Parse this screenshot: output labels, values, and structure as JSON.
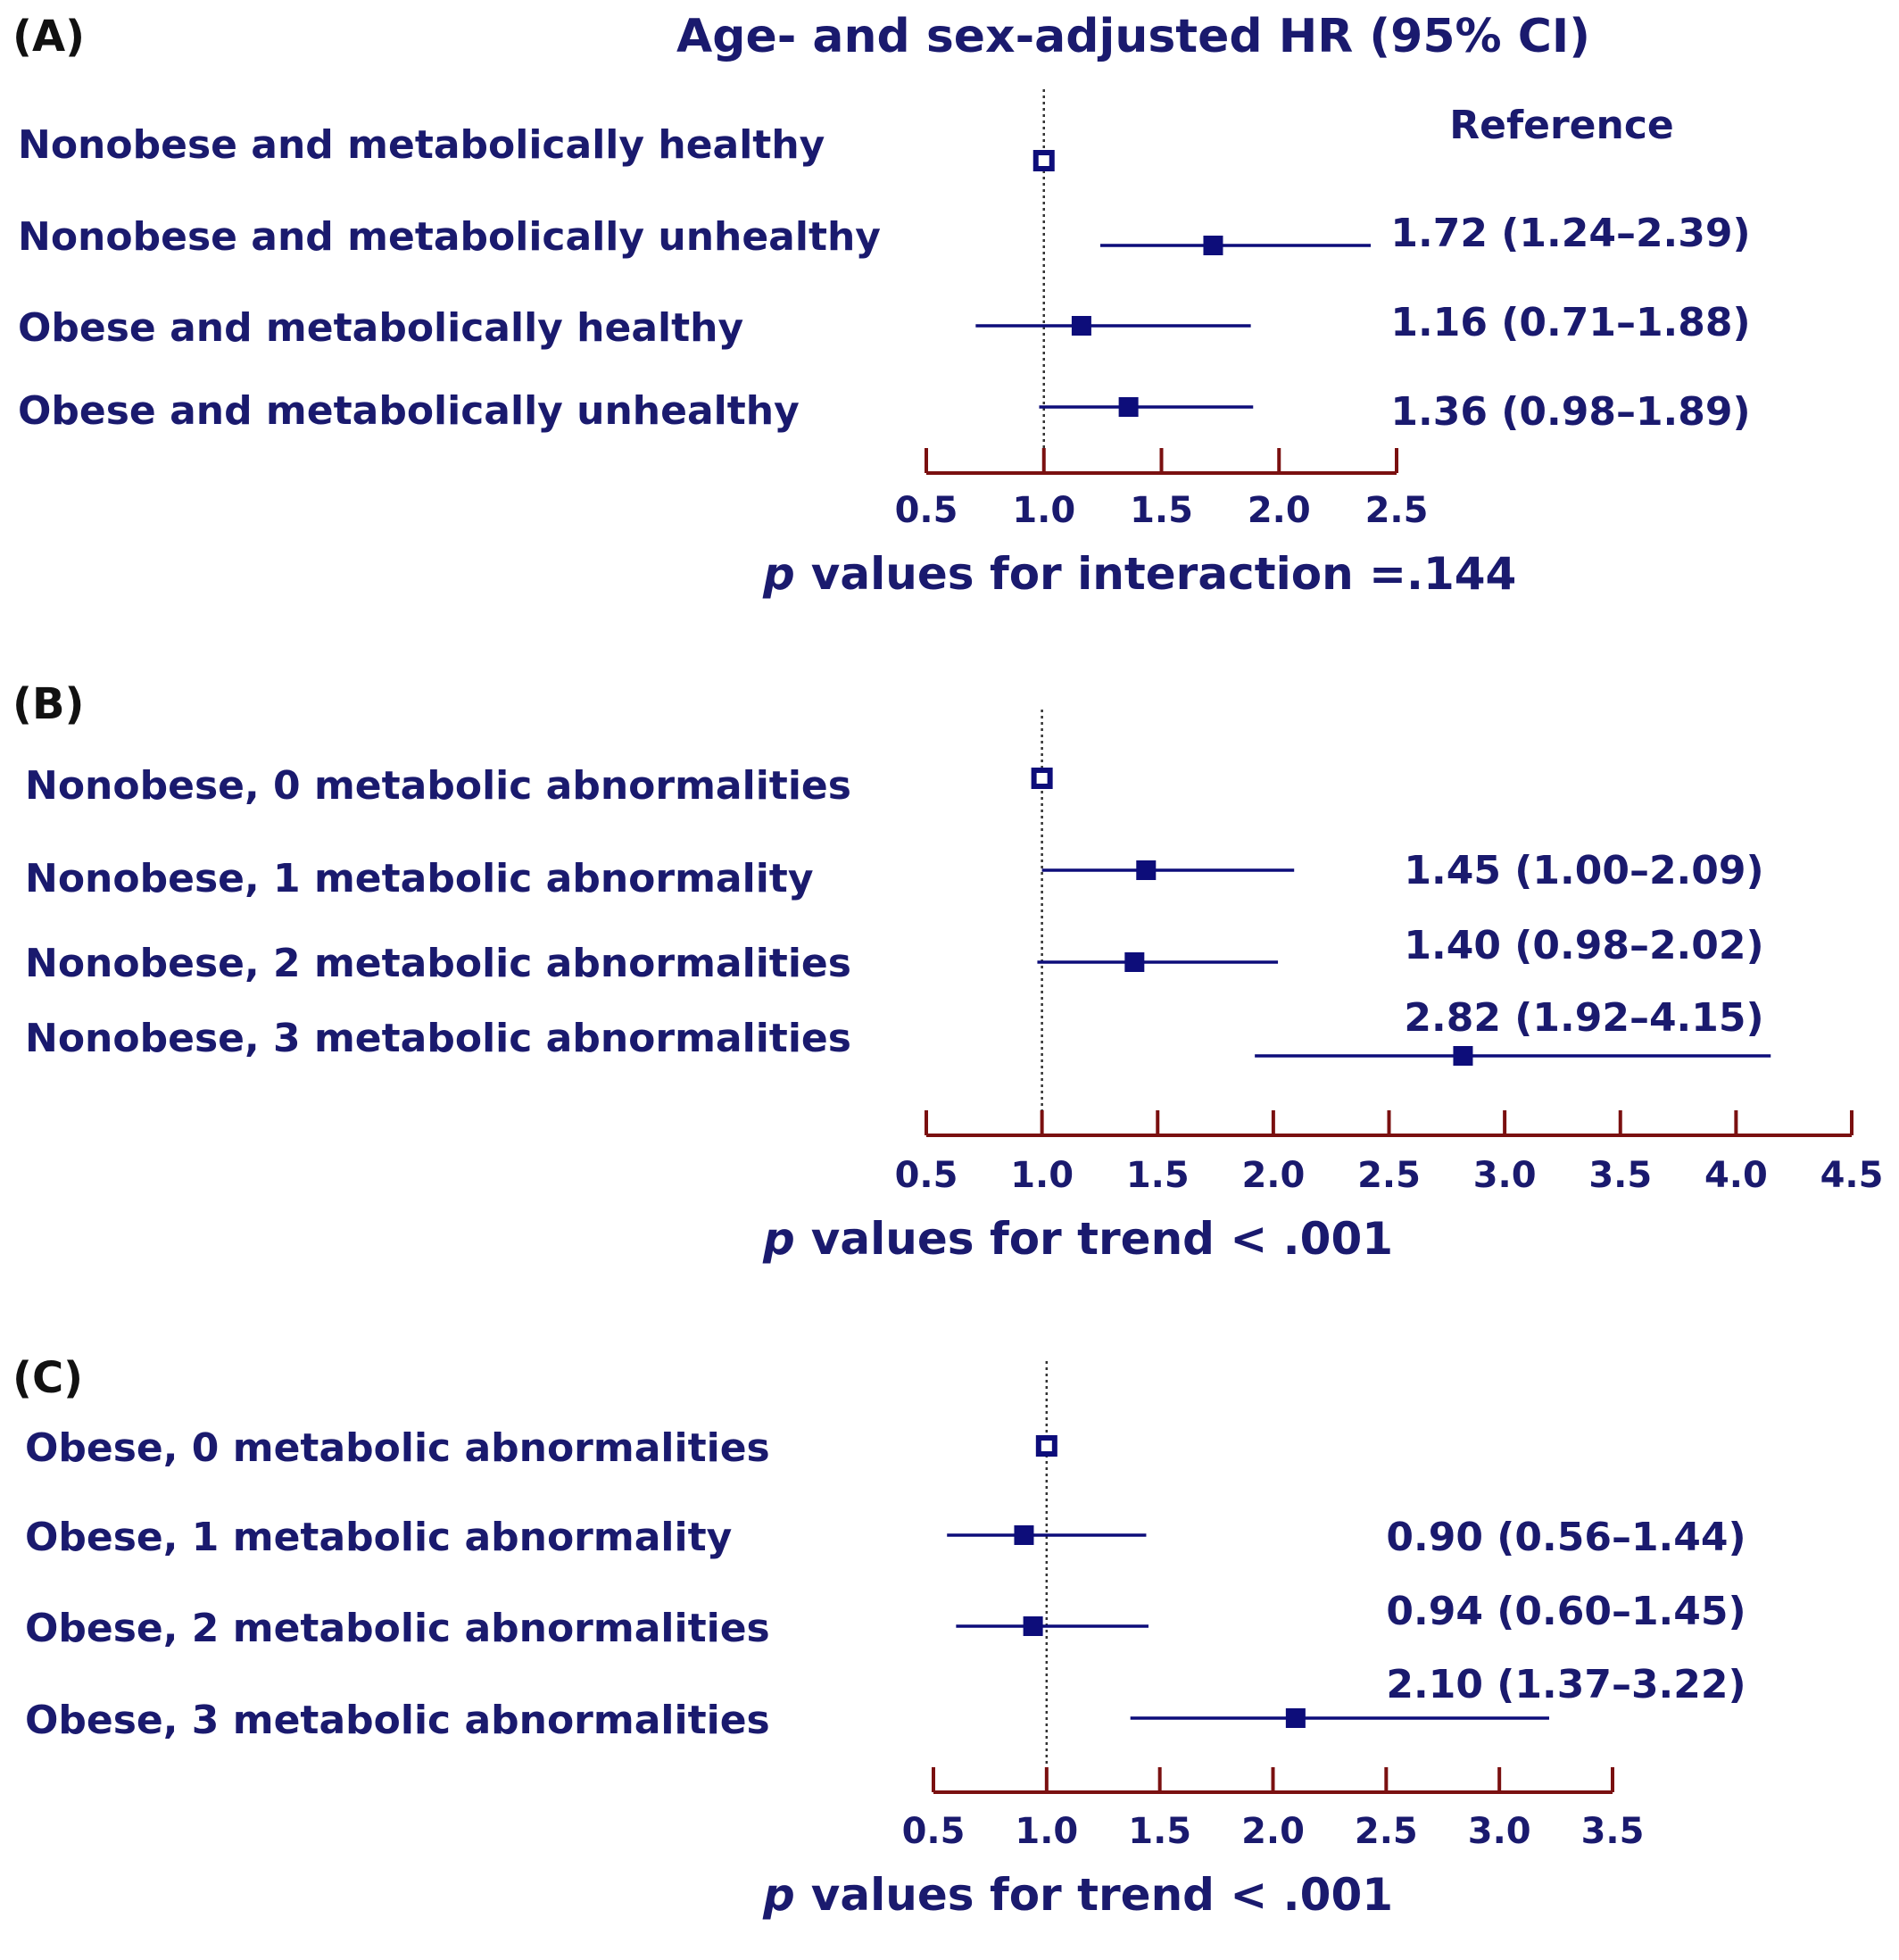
{
  "figure": {
    "header": "Age- and sex-adjusted HR (95% CI)",
    "reference_label": "Reference",
    "colors": {
      "text": "#1a1a6e",
      "marker": "#0d0d7a",
      "axis": "#7a1010",
      "panel_label": "#111111",
      "ref_line": "#333333"
    }
  },
  "chart_data": [
    {
      "type": "forest",
      "panel_label": "(A)",
      "rows": [
        {
          "label": "Nonobese and metabolically healthy",
          "hr": 1.0,
          "lo": 1.0,
          "hi": 1.0,
          "text": ""
        },
        {
          "label": "Nonobese and metabolically unhealthy",
          "hr": 1.72,
          "lo": 1.24,
          "hi": 2.39,
          "text": "1.72 (1.24–2.39)"
        },
        {
          "label": "Obese and metabolically healthy",
          "hr": 1.16,
          "lo": 0.71,
          "hi": 1.88,
          "text": "1.16 (0.71–1.88)"
        },
        {
          "label": "Obese and metabolically unhealthy",
          "hr": 1.36,
          "lo": 0.98,
          "hi": 1.89,
          "text": "1.36 (0.98–1.89)"
        }
      ],
      "xlim": [
        0.5,
        2.5
      ],
      "ticks": [
        "0.5",
        "1.0",
        "1.5",
        "2.0",
        "2.5"
      ],
      "footer_p": "p",
      "footer_text": "values for interaction =.144"
    },
    {
      "type": "forest",
      "panel_label": "(B)",
      "rows": [
        {
          "label": "Nonobese, 0 metabolic abnormalities",
          "hr": 1.0,
          "lo": 1.0,
          "hi": 1.0,
          "text": ""
        },
        {
          "label": "Nonobese, 1 metabolic abnormality",
          "hr": 1.45,
          "lo": 1.0,
          "hi": 2.09,
          "text": "1.45 (1.00–2.09)"
        },
        {
          "label": "Nonobese, 2 metabolic abnormalities",
          "hr": 1.4,
          "lo": 0.98,
          "hi": 2.02,
          "text": "1.40 (0.98–2.02)"
        },
        {
          "label": "Nonobese, 3 metabolic abnormalities",
          "hr": 2.82,
          "lo": 1.92,
          "hi": 4.15,
          "text": "2.82 (1.92–4.15)"
        }
      ],
      "xlim": [
        0.5,
        4.5
      ],
      "ticks": [
        "0.5",
        "1.0",
        "1.5",
        "2.0",
        "2.5",
        "3.0",
        "3.5",
        "4.0",
        "4.5"
      ],
      "footer_p": "p",
      "footer_text": "values for trend < .001"
    },
    {
      "type": "forest",
      "panel_label": "(C)",
      "rows": [
        {
          "label": "Obese, 0 metabolic abnormalities",
          "hr": 1.0,
          "lo": 1.0,
          "hi": 1.0,
          "text": ""
        },
        {
          "label": "Obese, 1 metabolic abnormality",
          "hr": 0.9,
          "lo": 0.56,
          "hi": 1.44,
          "text": "0.90 (0.56–1.44)"
        },
        {
          "label": "Obese, 2 metabolic abnormalities",
          "hr": 0.94,
          "lo": 0.6,
          "hi": 1.45,
          "text": "0.94 (0.60–1.45)"
        },
        {
          "label": "Obese, 3 metabolic abnormalities",
          "hr": 2.1,
          "lo": 1.37,
          "hi": 3.22,
          "text": "2.10 (1.37–3.22)"
        }
      ],
      "xlim": [
        0.5,
        3.5
      ],
      "ticks": [
        "0.5",
        "1.0",
        "1.5",
        "2.0",
        "2.5",
        "3.0",
        "3.5"
      ],
      "footer_p": "p",
      "footer_text": "values for trend < .001"
    }
  ]
}
